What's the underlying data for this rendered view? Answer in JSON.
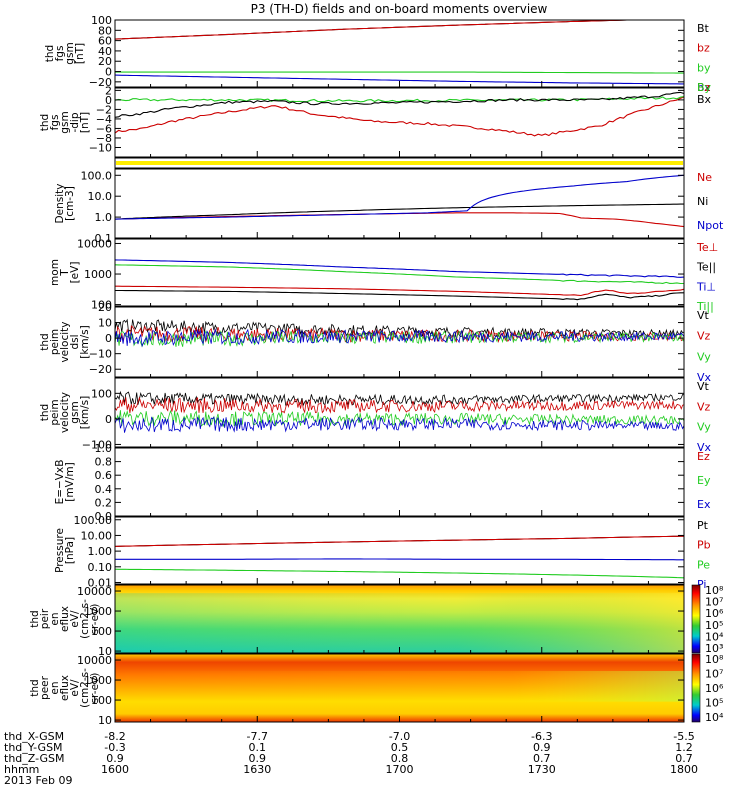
{
  "title": "P3 (TH-D) fields and on-board moments overview",
  "colors": {
    "black": "#000000",
    "red": "#cc0000",
    "green": "#22cc22",
    "blue": "#0000cc",
    "yellow": "#ffee00",
    "dark_red": "#aa0000"
  },
  "chart_data": [
    {
      "type": "line",
      "log": false,
      "ylabel": [
        "thd",
        "fgs",
        "gsm",
        "[nT]"
      ],
      "ylim": [
        -30,
        100
      ],
      "yticks": [
        -20,
        0,
        20,
        40,
        60,
        80,
        100
      ],
      "ytick_labels": [
        "−20",
        "0",
        "20",
        "40",
        "60",
        "80",
        "100"
      ],
      "series": [
        {
          "name": "Bt",
          "color": "#000000",
          "x": [
            0,
            0.2,
            0.4,
            0.6,
            0.8,
            1.0
          ],
          "y": [
            63,
            72,
            82,
            90,
            97,
            103
          ]
        },
        {
          "name": "bz",
          "color": "#cc0000",
          "x": [
            0,
            0.2,
            0.4,
            0.6,
            0.8,
            1.0
          ],
          "y": [
            63,
            72,
            82,
            90,
            97,
            103
          ]
        },
        {
          "name": "by",
          "color": "#22cc22",
          "x": [
            0,
            0.2,
            0.4,
            0.6,
            0.8,
            1.0
          ],
          "y": [
            -1,
            -1,
            -1,
            -1,
            -2,
            -3
          ]
        },
        {
          "name": "bx",
          "color": "#0000cc",
          "x": [
            0,
            0.2,
            0.4,
            0.6,
            0.8,
            1.0
          ],
          "y": [
            -7,
            -11,
            -15,
            -19,
            -22,
            -24
          ]
        }
      ]
    },
    {
      "type": "line",
      "log": false,
      "ylabel": [
        "thd",
        "fgs",
        "gsm",
        "-dip",
        "[nT]"
      ],
      "ylim": [
        -12,
        2.5
      ],
      "yticks": [
        -10,
        -8,
        -6,
        -4,
        -2,
        0,
        2
      ],
      "ytick_labels": [
        "−10",
        "−8",
        "−6",
        "−4",
        "−2",
        "0",
        "2"
      ],
      "series": [
        {
          "name": "Bz",
          "color": "#cc0000",
          "x": [
            0,
            0.05,
            0.1,
            0.2,
            0.28,
            0.35,
            0.45,
            0.55,
            0.65,
            0.75,
            0.85,
            0.92,
            1.0
          ],
          "y": [
            -6.7,
            -6.0,
            -4.5,
            -2.5,
            -1.2,
            -3.0,
            -4.5,
            -5.0,
            -6.0,
            -7.5,
            -5.5,
            -2.5,
            0.5
          ]
        },
        {
          "name": "By",
          "color": "#22cc22",
          "x": [
            0,
            0.2,
            0.4,
            0.6,
            0.8,
            1.0
          ],
          "y": [
            0,
            0,
            -0.2,
            -0.1,
            0,
            0.5
          ]
        },
        {
          "name": "Bx",
          "color": "#000000",
          "x": [
            0,
            0.05,
            0.1,
            0.2,
            0.28,
            0.35,
            0.5,
            0.7,
            0.85,
            0.95,
            1.0
          ],
          "y": [
            -3.5,
            -2.8,
            -1.8,
            -0.5,
            -0.3,
            -0.8,
            -0.6,
            0,
            0,
            0.8,
            1.5
          ]
        }
      ]
    },
    {
      "type": "bar_flag",
      "note": "yellow flag bar"
    },
    {
      "type": "line",
      "log": true,
      "ylabel": [
        "Density",
        "[cm-3]"
      ],
      "ylim": [
        0.1,
        200
      ],
      "yticks": [
        0.1,
        1.0,
        10.0,
        100.0
      ],
      "ytick_labels": [
        "0.1",
        "1.0",
        "10.0",
        "100.0"
      ],
      "series": [
        {
          "name": "Ne",
          "color": "#cc0000",
          "x": [
            0,
            0.15,
            0.3,
            0.45,
            0.6,
            0.7,
            0.78,
            0.82,
            0.88,
            0.95,
            1.0
          ],
          "y": [
            0.8,
            1.0,
            1.2,
            1.4,
            1.6,
            1.6,
            1.5,
            0.9,
            0.8,
            0.5,
            0.35
          ]
        },
        {
          "name": "Ni",
          "color": "#000000",
          "x": [
            0,
            0.2,
            0.4,
            0.6,
            0.8,
            1.0
          ],
          "y": [
            0.8,
            1.3,
            2.0,
            2.8,
            3.5,
            4.2
          ]
        },
        {
          "name": "Npot",
          "color": "#0000cc",
          "x": [
            0,
            0.2,
            0.4,
            0.55,
            0.62,
            0.7,
            0.8,
            0.9,
            1.0
          ],
          "y": [
            0.8,
            1.0,
            1.3,
            1.6,
            2.0,
            15,
            30,
            50,
            100
          ]
        }
      ]
    },
    {
      "type": "line",
      "log": true,
      "ylabel": [
        "mom",
        "T",
        "[eV]"
      ],
      "ylim": [
        90,
        14000
      ],
      "yticks": [
        100,
        1000,
        10000
      ],
      "ytick_labels": [
        "100",
        "1000",
        "10000"
      ],
      "series": [
        {
          "name": "Te⊥",
          "color": "#cc0000",
          "x": [
            0,
            0.2,
            0.4,
            0.6,
            0.75,
            0.82,
            0.86,
            0.9,
            0.95,
            1.0
          ],
          "y": [
            400,
            370,
            330,
            270,
            220,
            200,
            300,
            230,
            260,
            320
          ]
        },
        {
          "name": "Te||",
          "color": "#000000",
          "x": [
            0,
            0.2,
            0.4,
            0.6,
            0.75,
            0.82,
            0.86,
            0.9,
            0.95,
            1.0
          ],
          "y": [
            290,
            270,
            230,
            190,
            160,
            150,
            220,
            170,
            190,
            250
          ]
        },
        {
          "name": "Ti⊥",
          "color": "#0000cc",
          "x": [
            0,
            0.2,
            0.4,
            0.6,
            0.8,
            1.0
          ],
          "y": [
            2900,
            2400,
            1700,
            1200,
            950,
            800
          ]
        },
        {
          "name": "Ti||",
          "color": "#22cc22",
          "x": [
            0,
            0.2,
            0.4,
            0.6,
            0.8,
            1.0
          ],
          "y": [
            2000,
            1700,
            1200,
            800,
            600,
            500
          ]
        }
      ]
    },
    {
      "type": "line",
      "log": false,
      "ylabel": [
        "thd",
        "peim",
        "velocity",
        "dsl",
        "[km/s]"
      ],
      "ylim": [
        -25,
        20
      ],
      "yticks": [
        -20,
        -10,
        0,
        10,
        20
      ],
      "ytick_labels": [
        "−20",
        "−10",
        "0",
        "10",
        "20"
      ],
      "noise": true,
      "series": [
        {
          "name": "Vt",
          "color": "#000000",
          "x": [
            0,
            0.3,
            0.6,
            1.0
          ],
          "y": [
            8,
            6,
            4,
            3
          ]
        },
        {
          "name": "Vz",
          "color": "#cc0000",
          "x": [
            0,
            0.3,
            0.6,
            1.0
          ],
          "y": [
            3,
            2,
            1.5,
            1
          ]
        },
        {
          "name": "Vy",
          "color": "#22cc22",
          "x": [
            0,
            0.3,
            0.6,
            1.0
          ],
          "y": [
            -1,
            0,
            0.5,
            0.5
          ]
        },
        {
          "name": "Vx",
          "color": "#0000cc",
          "x": [
            0,
            0.3,
            0.6,
            1.0
          ],
          "y": [
            0,
            1,
            1,
            1
          ]
        }
      ]
    },
    {
      "type": "line",
      "log": false,
      "ylabel": [
        "thd",
        "peim",
        "velocity",
        "gsm",
        "[km/s]"
      ],
      "ylim": [
        -110,
        160
      ],
      "yticks": [
        -100,
        0,
        100
      ],
      "ytick_labels": [
        "−100",
        "0",
        "100"
      ],
      "noise": true,
      "series": [
        {
          "name": "Vt",
          "color": "#000000",
          "x": [
            0,
            0.3,
            0.6,
            1.0
          ],
          "y": [
            80,
            75,
            75,
            85
          ]
        },
        {
          "name": "Vz",
          "color": "#cc0000",
          "x": [
            0,
            0.3,
            0.6,
            1.0
          ],
          "y": [
            55,
            50,
            50,
            55
          ]
        },
        {
          "name": "Vy",
          "color": "#22cc22",
          "x": [
            0,
            0.3,
            0.6,
            1.0
          ],
          "y": [
            5,
            0,
            0,
            -5
          ]
        },
        {
          "name": "Vx",
          "color": "#0000cc",
          "x": [
            0,
            0.3,
            0.6,
            1.0
          ],
          "y": [
            -25,
            -20,
            -20,
            -30
          ]
        }
      ]
    },
    {
      "type": "line",
      "log": false,
      "ylabel": [
        "E=−VxB",
        "[mV/m]"
      ],
      "ylim": [
        0,
        1
      ],
      "yticks": [
        0.0,
        0.2,
        0.4,
        0.6,
        0.8,
        1.0
      ],
      "ytick_labels": [
        "0.0",
        "0.2",
        "0.4",
        "0.6",
        "0.8",
        "1.0"
      ],
      "series": [
        {
          "name": "Ez",
          "color": "#cc0000",
          "x": [],
          "y": []
        },
        {
          "name": "Ey",
          "color": "#22cc22",
          "x": [],
          "y": []
        },
        {
          "name": "Ex",
          "color": "#0000cc",
          "x": [],
          "y": []
        }
      ]
    },
    {
      "type": "line",
      "log": true,
      "ylabel": [
        "Pressure",
        "[nPa]"
      ],
      "ylim": [
        0.008,
        150
      ],
      "yticks": [
        0.01,
        0.1,
        1.0,
        10.0,
        100.0
      ],
      "ytick_labels": [
        "0.01",
        "0.10",
        "1.00",
        "10.00",
        "100.00"
      ],
      "series": [
        {
          "name": "Pt",
          "color": "#000000",
          "x": [
            0,
            0.2,
            0.4,
            0.6,
            0.8,
            1.0
          ],
          "y": [
            2.0,
            2.8,
            3.8,
            5.0,
            6.5,
            9.0
          ]
        },
        {
          "name": "Pb",
          "color": "#cc0000",
          "x": [
            0,
            0.2,
            0.4,
            0.6,
            0.8,
            1.0
          ],
          "y": [
            2.0,
            2.8,
            3.8,
            5.0,
            6.5,
            9.0
          ]
        },
        {
          "name": "Pe",
          "color": "#22cc22",
          "x": [
            0,
            0.2,
            0.4,
            0.6,
            0.8,
            1.0
          ],
          "y": [
            0.07,
            0.06,
            0.05,
            0.04,
            0.03,
            0.02
          ]
        },
        {
          "name": "Pi",
          "color": "#0000cc",
          "x": [
            0,
            0.2,
            0.4,
            0.6,
            0.8,
            1.0
          ],
          "y": [
            0.3,
            0.3,
            0.32,
            0.3,
            0.3,
            0.28
          ]
        }
      ]
    },
    {
      "type": "heatmap",
      "variant": "ion",
      "ylabel": [
        "thd",
        "peir",
        "en",
        "eflux",
        "eV/",
        "(cm2-s-",
        "sr-eV)"
      ],
      "yticks": [
        10,
        100,
        1000,
        10000
      ],
      "ytick_labels": [
        "10",
        "100",
        "1000",
        "10000"
      ],
      "ylim": [
        8,
        20000
      ],
      "colorbar_labels": [
        "10⁸",
        "10⁷",
        "10⁶",
        "10⁵",
        "10⁴",
        "10³"
      ]
    },
    {
      "type": "heatmap",
      "variant": "electron",
      "ylabel": [
        "thd",
        "peer",
        "en",
        "eflux",
        "eV/",
        "(cm2-s-",
        "sr-eV)"
      ],
      "yticks": [
        10,
        100,
        1000,
        10000
      ],
      "ytick_labels": [
        "10",
        "100",
        "1000",
        "10000"
      ],
      "ylim": [
        8,
        20000
      ],
      "colorbar_labels": [
        "10⁸",
        "10⁷",
        "10⁶",
        "10⁵",
        "10⁴"
      ]
    }
  ],
  "footer": {
    "row_labels": [
      "thd_X-GSM",
      "thd_Y-GSM",
      "thd_Z-GSM",
      "hhmm",
      "2013 Feb 09"
    ],
    "columns": [
      [
        "-8.2",
        "-0.3",
        "0.9",
        "1600"
      ],
      [
        "-7.7",
        "0.1",
        "0.9",
        "1630"
      ],
      [
        "-7.0",
        "0.5",
        "0.8",
        "1700"
      ],
      [
        "-6.3",
        "0.9",
        "0.7",
        "1730"
      ],
      [
        "-5.5",
        "1.2",
        "0.7",
        "1800"
      ]
    ]
  }
}
